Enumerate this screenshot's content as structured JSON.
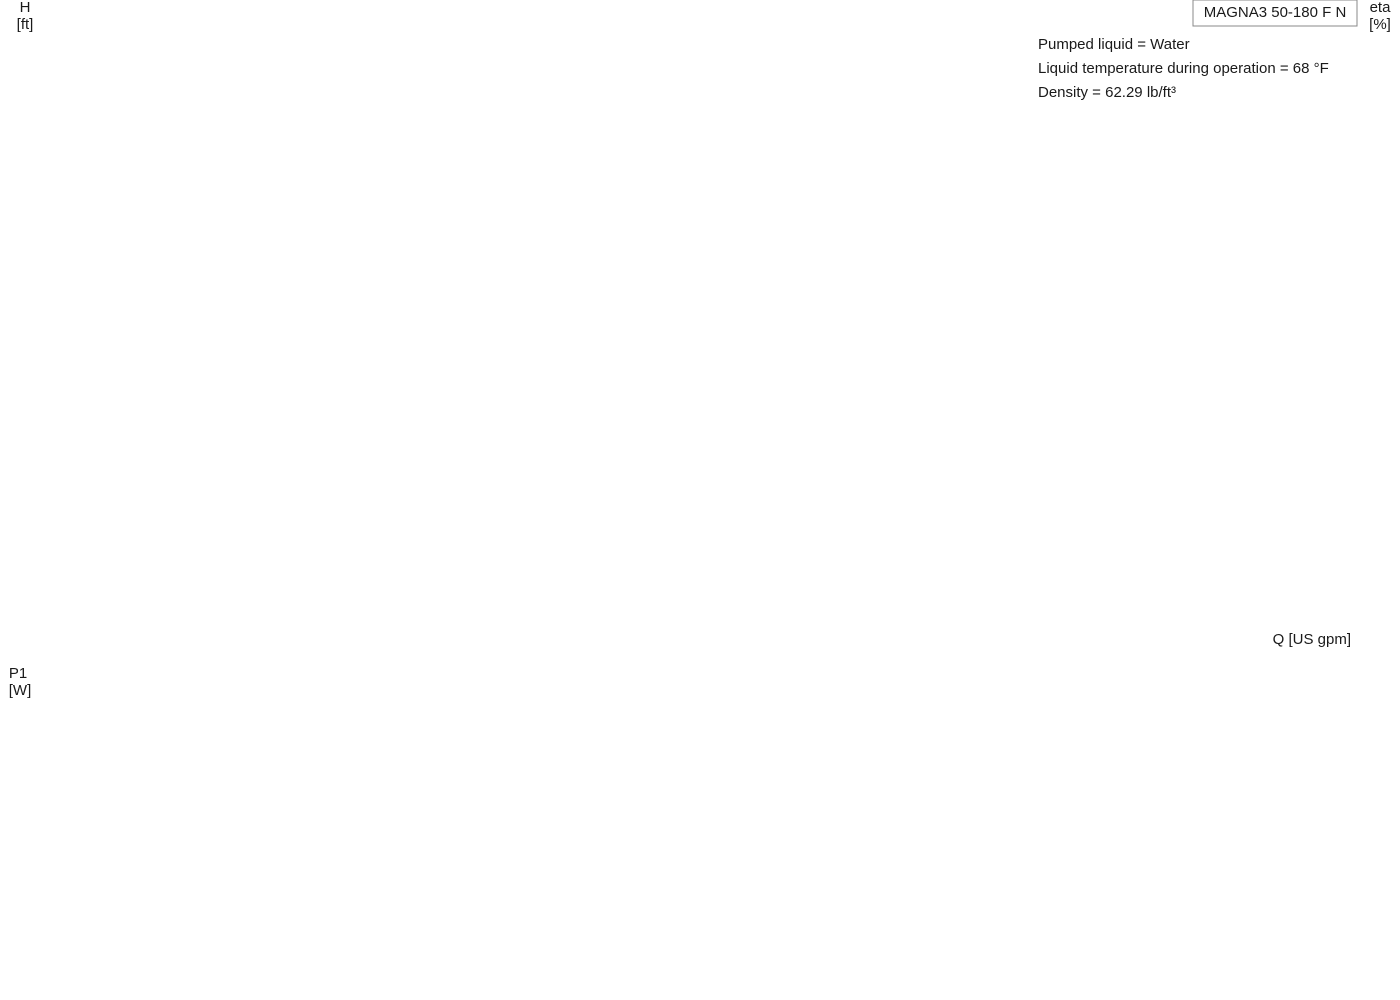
{
  "chart_data": [
    {
      "type": "line",
      "title": "MAGNA3 50-180 F N",
      "annotations": [
        "Pumped liquid = Water",
        "Liquid temperature during operation = 68 °F",
        "Density = 62.29 lb/ft³"
      ],
      "ylabel": [
        "H",
        "[ft]"
      ],
      "y2label": [
        "eta",
        "[%]"
      ],
      "xlabel": "Q [US gpm]",
      "xlim": [
        0,
        237
      ],
      "xticks": [
        0,
        10,
        20,
        30,
        40,
        50,
        60,
        70,
        80,
        90,
        100,
        110,
        120,
        130,
        140,
        150,
        160,
        170,
        180,
        190,
        200,
        210
      ],
      "ylim": [
        0,
        75
      ],
      "yticks": [
        0,
        5,
        10,
        15,
        20,
        25,
        30,
        35,
        40,
        45,
        50,
        55,
        60,
        65
      ],
      "y2lim": [
        0,
        150
      ],
      "y2ticks": [
        0,
        10,
        20,
        30,
        40,
        50,
        60,
        70,
        80,
        90,
        100
      ],
      "grid": true,
      "fill_color": "#d3dde8",
      "series": [
        {
          "color": "#0d4a86",
          "width": 2,
          "x": [
            0,
            20,
            40,
            60
          ],
          "values": [
            3.2,
            2.9,
            1.9,
            0.3
          ]
        },
        {
          "color": "#0d4a86",
          "width": 2,
          "x": [
            0,
            27,
            55,
            82
          ],
          "values": [
            6.1,
            5.7,
            4.0,
            0.7
          ]
        },
        {
          "color": "#0d4a86",
          "width": 2,
          "x": [
            0,
            35,
            70,
            104
          ],
          "values": [
            9.6,
            9.0,
            6.3,
            1.3
          ]
        },
        {
          "color": "#0d4a86",
          "width": 2,
          "x": [
            0,
            42,
            84,
            126
          ],
          "values": [
            14.2,
            13.3,
            9.7,
            1.9
          ]
        },
        {
          "color": "#0d4a86",
          "width": 2,
          "x": [
            0,
            49,
            98,
            147
          ],
          "values": [
            19.5,
            18.4,
            13.3,
            2.7
          ]
        },
        {
          "color": "#0d4a86",
          "width": 2,
          "x": [
            0,
            56,
            113,
            169
          ],
          "values": [
            25.8,
            24.5,
            17.5,
            3.6
          ]
        },
        {
          "color": "#0d4a86",
          "width": 2,
          "x": [
            0,
            30,
            60,
            80,
            101
          ],
          "values": [
            32.8,
            32.7,
            31.5,
            30.5,
            26.8
          ]
        },
        {
          "color": "#0d4a86",
          "width": 2,
          "x": [
            0,
            20,
            40,
            55
          ],
          "values": [
            40.8,
            41,
            40.8,
            40
          ]
        },
        {
          "color": "#0d4a86",
          "width": 2,
          "x": [
            0,
            15,
            25
          ],
          "values": [
            49.8,
            50,
            50
          ]
        },
        {
          "color": "#0d4a86",
          "width": 3,
          "x": [
            0,
            4.5,
            25,
            55,
            101,
            184
          ],
          "values": [
            58.2,
            58.2,
            50,
            40,
            26.8,
            4.3
          ]
        },
        {
          "color": "#000000",
          "width": 1.5,
          "axis": "y2",
          "x": [
            0,
            10,
            20,
            35,
            50,
            60
          ],
          "values": [
            0,
            24,
            37,
            45.3,
            30,
            13.2
          ]
        },
        {
          "color": "#000000",
          "width": 1.5,
          "axis": "y2",
          "x": [
            0,
            12,
            25,
            47,
            65,
            82
          ],
          "values": [
            0,
            25,
            41,
            55.6,
            43,
            16.3
          ]
        },
        {
          "color": "#000000",
          "width": 1.5,
          "axis": "y2",
          "x": [
            0,
            15,
            30,
            57,
            82,
            104
          ],
          "values": [
            0,
            26,
            42,
            61.6,
            48,
            18
          ]
        },
        {
          "color": "#000000",
          "width": 1.5,
          "axis": "y2",
          "x": [
            0,
            18,
            36,
            68,
            98,
            126
          ],
          "values": [
            0,
            26,
            43,
            64,
            50,
            18.5
          ]
        },
        {
          "color": "#000000",
          "width": 1.5,
          "axis": "y2",
          "x": [
            0,
            20,
            42,
            80,
            115,
            147
          ],
          "values": [
            0,
            25,
            43,
            65.5,
            53,
            18.9
          ]
        },
        {
          "color": "#000000",
          "width": 1.5,
          "axis": "y2",
          "x": [
            0,
            22,
            48,
            92,
            132,
            169
          ],
          "values": [
            0,
            25,
            44,
            66.2,
            54,
            18.9
          ]
        },
        {
          "color": "#000000",
          "width": 2.5,
          "axis": "y2",
          "x": [
            0,
            25,
            52,
            100,
            145,
            184
          ],
          "values": [
            0,
            25,
            43,
            66.7,
            53,
            18.9
          ]
        }
      ]
    },
    {
      "type": "line",
      "ylabel": [
        "P1",
        "[W]"
      ],
      "ylim": [
        0,
        910
      ],
      "yticks": [
        0,
        100,
        200,
        300,
        400,
        500,
        600,
        700
      ],
      "grid": true,
      "fill_color": "#d3dde8",
      "series": [
        {
          "color": "#0d4a86",
          "width": 2,
          "x": [
            0,
            30,
            60
          ],
          "values": [
            9,
            25,
            33
          ]
        },
        {
          "color": "#0d4a86",
          "width": 2,
          "x": [
            0,
            40,
            82
          ],
          "values": [
            25,
            60,
            77
          ]
        },
        {
          "color": "#0d4a86",
          "width": 2,
          "x": [
            0,
            50,
            95,
            104
          ],
          "values": [
            49,
            115,
            148,
            146
          ]
        },
        {
          "color": "#0d4a86",
          "width": 2,
          "x": [
            0,
            60,
            105,
            126
          ],
          "values": [
            95,
            205,
            255,
            250
          ]
        },
        {
          "color": "#0d4a86",
          "width": 2,
          "x": [
            0,
            60,
            125,
            147
          ],
          "values": [
            152,
            310,
            410,
            399
          ]
        },
        {
          "color": "#0d4a86",
          "width": 2,
          "x": [
            0,
            70,
            145,
            169
          ],
          "values": [
            220,
            460,
            615,
            598
          ]
        },
        {
          "color": "#0d4a86",
          "width": 2,
          "x": [
            0,
            50,
            101
          ],
          "values": [
            310,
            580,
            765
          ]
        },
        {
          "color": "#0d4a86",
          "width": 2,
          "x": [
            0,
            25,
            55
          ],
          "values": [
            428,
            610,
            765
          ]
        },
        {
          "color": "#0d4a86",
          "width": 2,
          "x": [
            0,
            12,
            25
          ],
          "values": [
            571,
            680,
            765
          ]
        },
        {
          "color": "#0d4a86",
          "width": 3,
          "x": [
            0,
            4.5,
            184
          ],
          "values": [
            730,
            765,
            765
          ]
        }
      ]
    }
  ]
}
